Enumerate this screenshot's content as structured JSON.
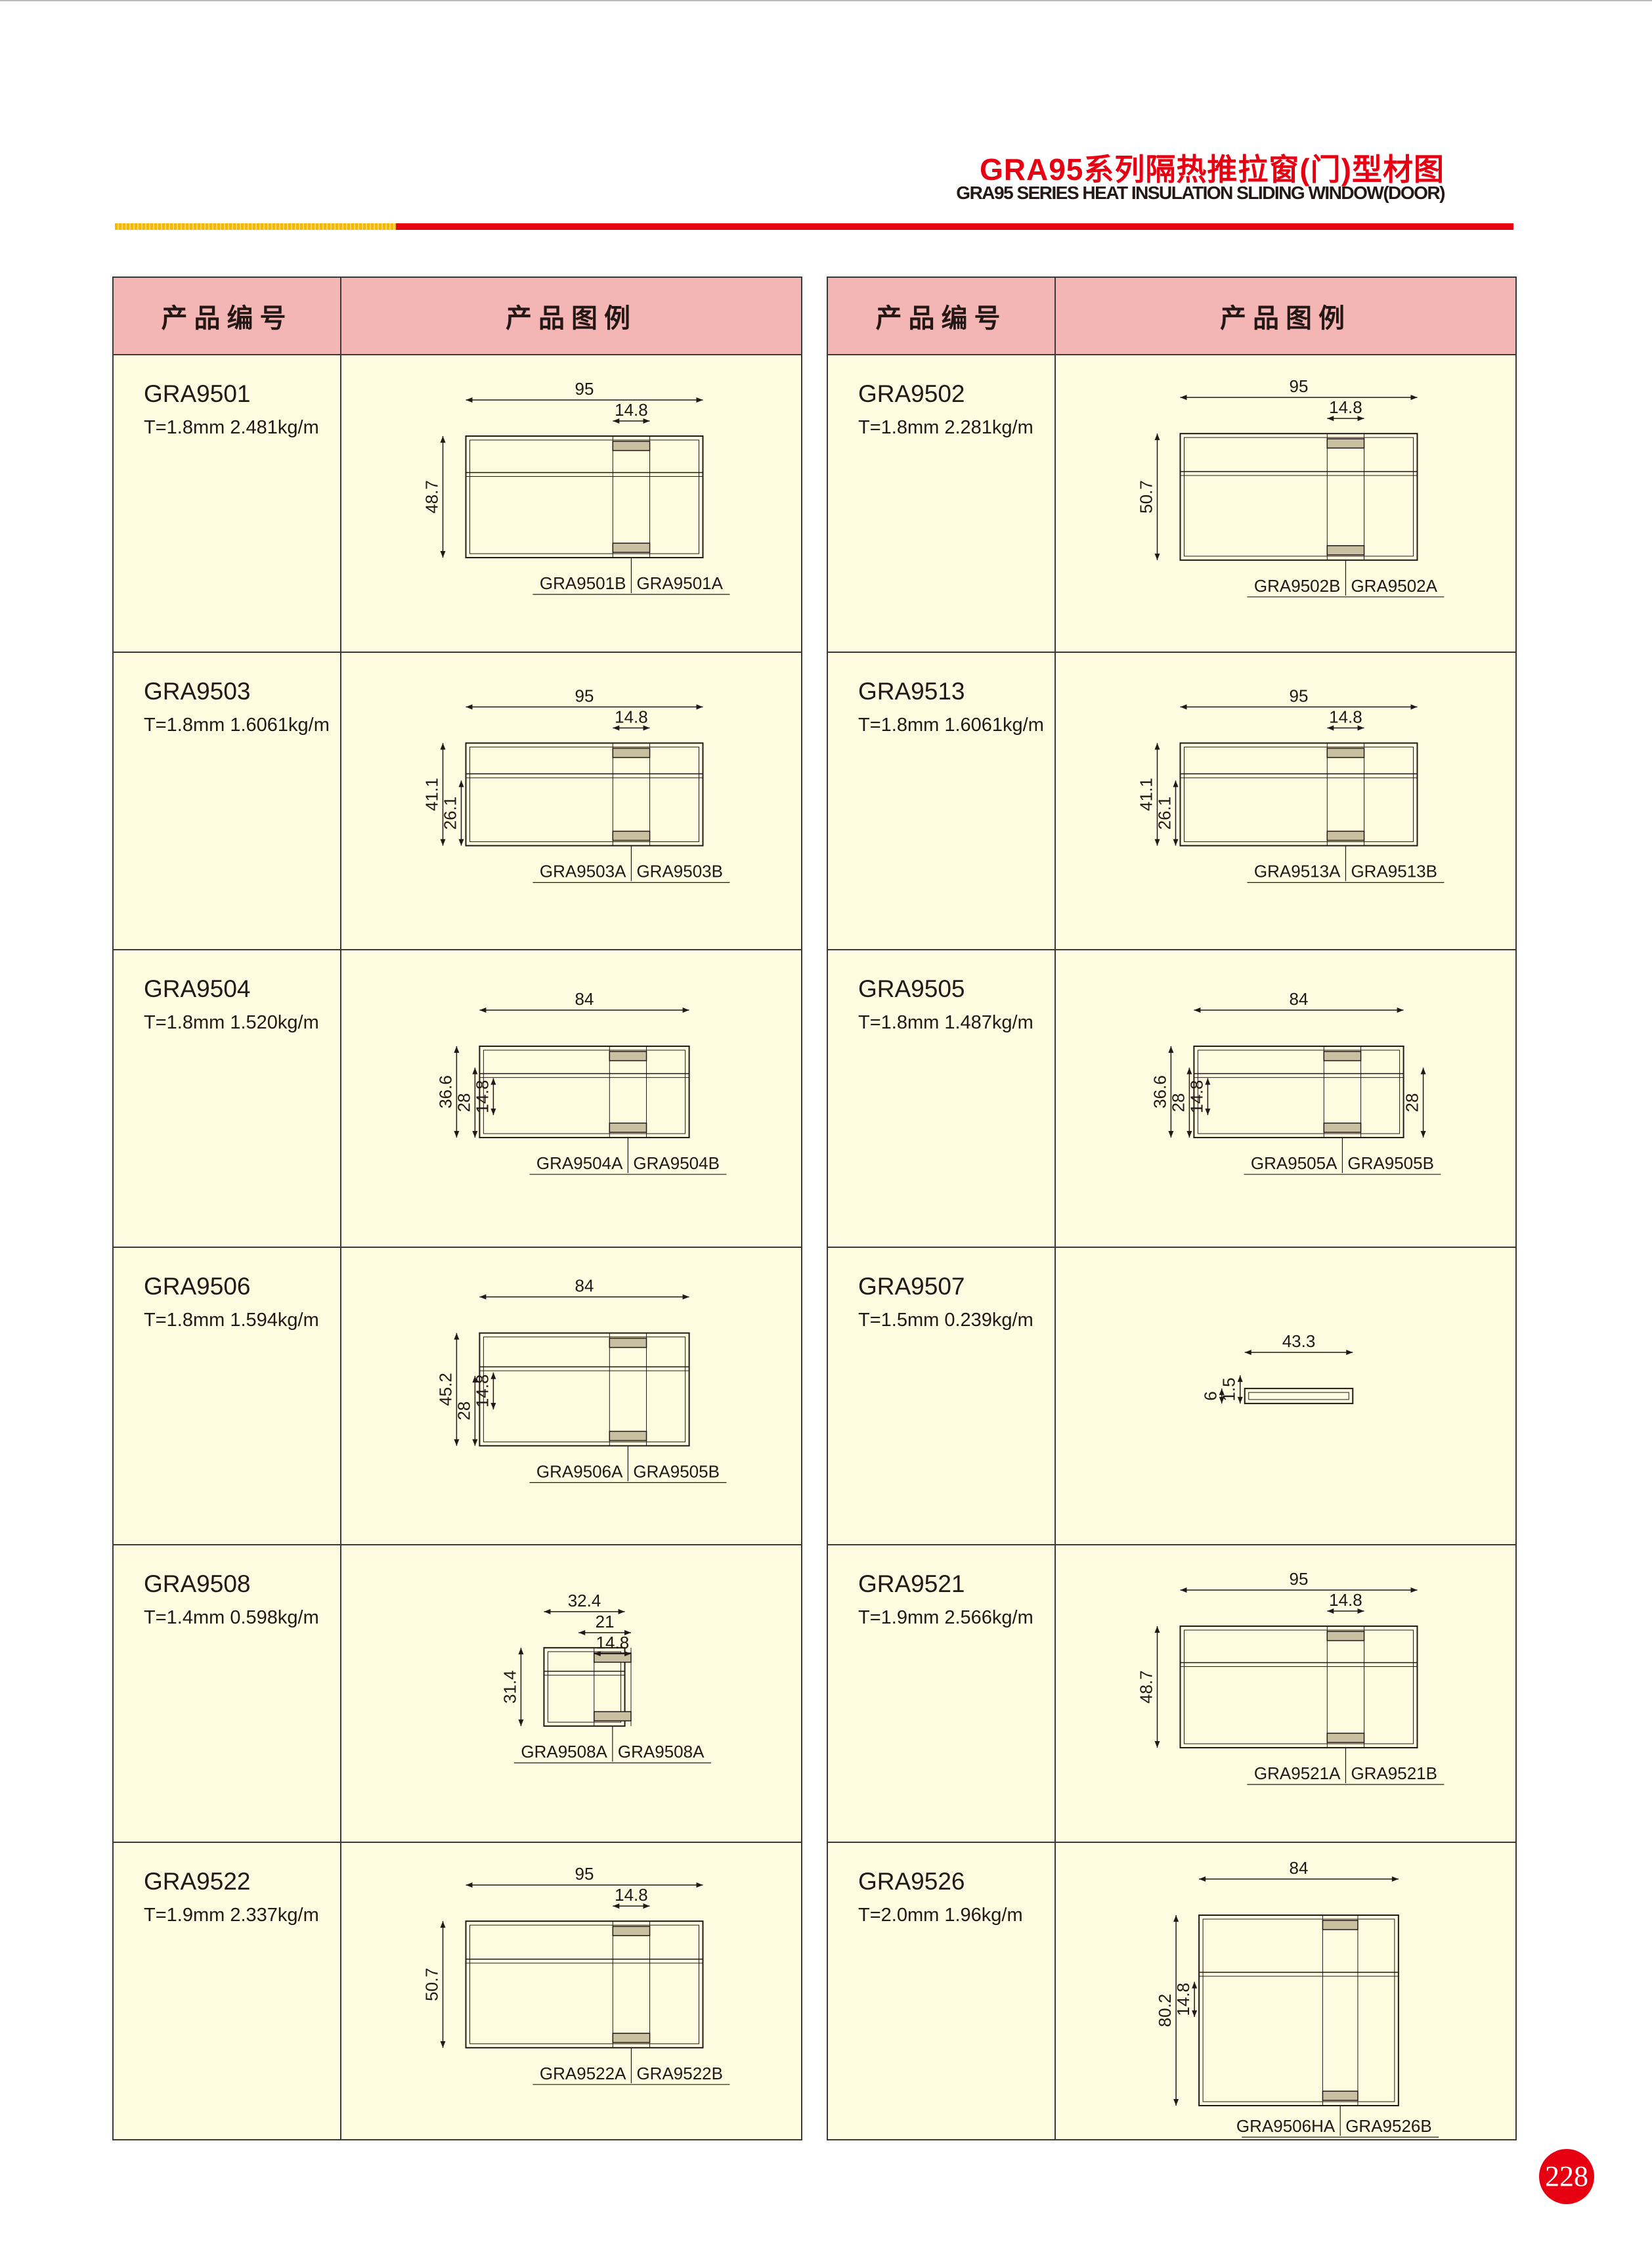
{
  "header": {
    "title_cn": "GRA95系列隔热推拉窗(门)型材图",
    "title_en": "GRA95 SERIES HEAT INSULATION SLIDING WINDOW(DOOR)"
  },
  "colors": {
    "accent_red": "#e60012",
    "header_pink": "#f4b6b4",
    "cell_bg": "#fefbe0",
    "bar_yellow": "#f5b800"
  },
  "tables": [
    {
      "col_code": "产品编号",
      "col_drawing": "产品图例",
      "products": [
        {
          "code": "GRA9501",
          "spec": "T=1.8mm  2.481kg/m",
          "h_dims": [
            "95",
            "14.8"
          ],
          "v_dims": [
            "48.7"
          ],
          "labels": [
            "GRA9501B",
            "GRA9501A"
          ]
        },
        {
          "code": "GRA9503",
          "spec": "T=1.8mm  1.6061kg/m",
          "h_dims": [
            "95",
            "14.8"
          ],
          "v_dims": [
            "41.1",
            "26.1"
          ],
          "labels": [
            "GRA9503A",
            "GRA9503B"
          ]
        },
        {
          "code": "GRA9504",
          "spec": "T=1.8mm  1.520kg/m",
          "h_dims": [
            "84"
          ],
          "v_dims": [
            "36.6",
            "28",
            "14.8"
          ],
          "labels": [
            "GRA9504A",
            "GRA9504B"
          ]
        },
        {
          "code": "GRA9506",
          "spec": "T=1.8mm  1.594kg/m",
          "h_dims": [
            "84"
          ],
          "v_dims": [
            "45.2",
            "28",
            "14.8"
          ],
          "labels": [
            "GRA9506A",
            "GRA9505B"
          ]
        },
        {
          "code": "GRA9508",
          "spec": "T=1.4mm  0.598kg/m",
          "h_dims": [
            "32.4",
            "21",
            "14.8"
          ],
          "v_dims": [
            "31.4"
          ],
          "labels": [
            "GRA9508A",
            "GRA9508A"
          ]
        },
        {
          "code": "GRA9522",
          "spec": "T=1.9mm  2.337kg/m",
          "h_dims": [
            "95",
            "14.8"
          ],
          "v_dims": [
            "50.7"
          ],
          "labels": [
            "GRA9522A",
            "GRA9522B"
          ]
        }
      ]
    },
    {
      "col_code": "产品编号",
      "col_drawing": "产品图例",
      "products": [
        {
          "code": "GRA9502",
          "spec": "T=1.8mm  2.281kg/m",
          "h_dims": [
            "95",
            "14.8"
          ],
          "v_dims": [
            "50.7"
          ],
          "labels": [
            "GRA9502B",
            "GRA9502A"
          ]
        },
        {
          "code": "GRA9513",
          "spec": "T=1.8mm  1.6061kg/m",
          "h_dims": [
            "95",
            "14.8"
          ],
          "v_dims": [
            "41.1",
            "26.1"
          ],
          "labels": [
            "GRA9513A",
            "GRA9513B"
          ]
        },
        {
          "code": "GRA9505",
          "spec": "T=1.8mm  1.487kg/m",
          "h_dims": [
            "84"
          ],
          "v_dims": [
            "36.6",
            "28",
            "14.8",
            "28"
          ],
          "labels": [
            "GRA9505A",
            "GRA9505B"
          ]
        },
        {
          "code": "GRA9507",
          "spec": "T=1.5mm  0.239kg/m",
          "h_dims": [
            "43.3"
          ],
          "v_dims": [
            "6",
            "1.5"
          ],
          "labels": []
        },
        {
          "code": "GRA9521",
          "spec": "T=1.9mm  2.566kg/m",
          "h_dims": [
            "95",
            "14.8"
          ],
          "v_dims": [
            "48.7"
          ],
          "labels": [
            "GRA9521A",
            "GRA9521B"
          ]
        },
        {
          "code": "GRA9526",
          "spec": "T=2.0mm  1.96kg/m",
          "h_dims": [
            "84"
          ],
          "v_dims": [
            "80.2",
            "14.8"
          ],
          "labels": [
            "GRA9506HA",
            "GRA9526B"
          ]
        }
      ]
    }
  ],
  "page_number": "228"
}
